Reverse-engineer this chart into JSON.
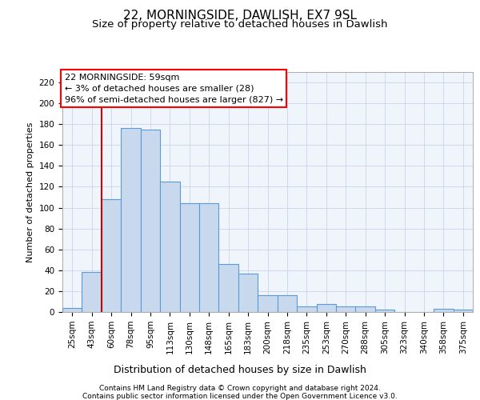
{
  "title1": "22, MORNINGSIDE, DAWLISH, EX7 9SL",
  "title2": "Size of property relative to detached houses in Dawlish",
  "xlabel": "Distribution of detached houses by size in Dawlish",
  "ylabel": "Number of detached properties",
  "footer1": "Contains HM Land Registry data © Crown copyright and database right 2024.",
  "footer2": "Contains public sector information licensed under the Open Government Licence v3.0.",
  "annotation_line1": "22 MORNINGSIDE: 59sqm",
  "annotation_line2": "← 3% of detached houses are smaller (28)",
  "annotation_line3": "96% of semi-detached houses are larger (827) →",
  "bar_labels": [
    "25sqm",
    "43sqm",
    "60sqm",
    "78sqm",
    "95sqm",
    "113sqm",
    "130sqm",
    "148sqm",
    "165sqm",
    "183sqm",
    "200sqm",
    "218sqm",
    "235sqm",
    "253sqm",
    "270sqm",
    "288sqm",
    "305sqm",
    "323sqm",
    "340sqm",
    "358sqm",
    "375sqm"
  ],
  "bar_values": [
    4,
    38,
    108,
    176,
    175,
    125,
    104,
    104,
    46,
    37,
    16,
    16,
    5,
    8,
    5,
    5,
    2,
    0,
    0,
    3,
    2
  ],
  "bar_color": "#c8d9ee",
  "bar_edge_color": "#5b9bd5",
  "vline_color": "#cc0000",
  "vline_x": 2.5,
  "ylim": [
    0,
    230
  ],
  "yticks": [
    0,
    20,
    40,
    60,
    80,
    100,
    120,
    140,
    160,
    180,
    200,
    220
  ],
  "bg_color": "#f0f4fb",
  "grid_color": "#c8d4e8",
  "title1_fontsize": 11,
  "title2_fontsize": 9.5,
  "xlabel_fontsize": 9,
  "ylabel_fontsize": 8,
  "tick_fontsize": 7.5,
  "footer_fontsize": 6.5,
  "annot_fontsize": 8
}
